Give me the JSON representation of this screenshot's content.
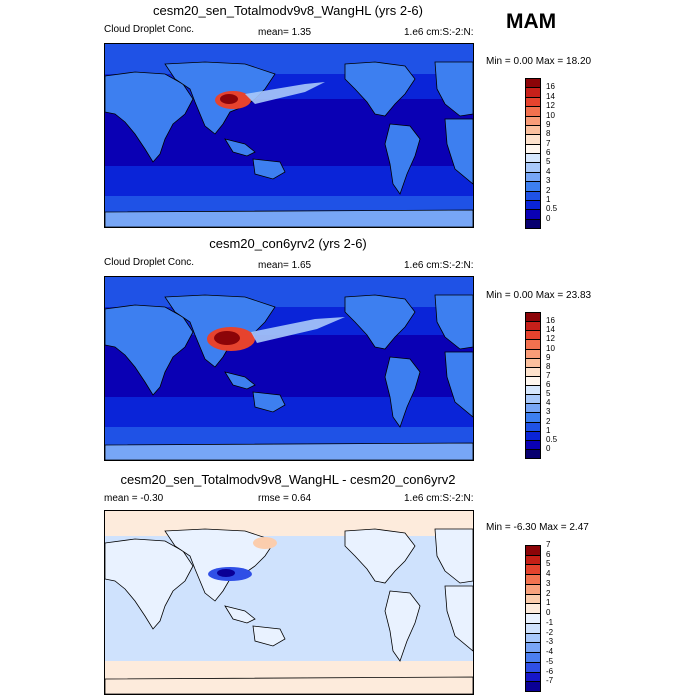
{
  "season": "MAM",
  "colors": {
    "seq": [
      "#08006f",
      "#0a00b4",
      "#0a24d8",
      "#1f52e6",
      "#3d7ff0",
      "#77a6f6",
      "#a9c9fa",
      "#d6e7fd",
      "#fff7ef",
      "#fee2cc",
      "#fbc09e",
      "#f89c78",
      "#f2714f",
      "#e6432e",
      "#c7201a",
      "#8c0408"
    ],
    "div": [
      "#0a0096",
      "#1616c9",
      "#2f4fe6",
      "#4c7ff0",
      "#79a5f6",
      "#a7c8fb",
      "#cfe2fd",
      "#e9f2ff",
      "#fdebdc",
      "#fbcdad",
      "#f8a27d",
      "#f27350",
      "#e4432d",
      "#c51f16",
      "#8c0408"
    ]
  },
  "panels": [
    {
      "title": "cesm20_sen_Totalmodv9v8_WangHL (yrs 2-6)",
      "left_label": "Cloud Droplet Conc.",
      "center_label": "mean=   1.35",
      "right_label": "1.e6 cm:S:-2:N:",
      "minmax": "Min =   0.00 Max =  18.20",
      "levels": [
        "0",
        "0.5",
        "1",
        "2",
        "3",
        "4",
        "5",
        "6",
        "7",
        "8",
        "9",
        "10",
        "12",
        "14",
        "16"
      ]
    },
    {
      "title": "cesm20_con6yrv2 (yrs 2-6)",
      "left_label": "Cloud Droplet Conc.",
      "center_label": "mean=   1.65",
      "right_label": "1.e6 cm:S:-2:N:",
      "minmax": "Min =   0.00 Max =  23.83",
      "levels": [
        "0",
        "0.5",
        "1",
        "2",
        "3",
        "4",
        "5",
        "6",
        "7",
        "8",
        "9",
        "10",
        "12",
        "14",
        "16"
      ]
    },
    {
      "title": "cesm20_sen_Totalmodv9v8_WangHL - cesm20_con6yrv2",
      "left_label": "mean =  -0.30",
      "center_label": "rmse =   0.64",
      "right_label": "1.e6 cm:S:-2:N:",
      "minmax": "Min =  -6.30 Max =   2.47",
      "levels": [
        "-7",
        "-6",
        "-5",
        "-4",
        "-3",
        "-2",
        "-1",
        "0",
        "1",
        "2",
        "3",
        "4",
        "5",
        "6",
        "7"
      ]
    }
  ],
  "chart_data": [
    {
      "type": "heatmap",
      "title": "cesm20_sen_Totalmodv9v8_WangHL (yrs 2-6)",
      "variable": "Cloud Droplet Conc.",
      "units": "1.e6 cm:S:-2:N:",
      "mean": 1.35,
      "min": 0.0,
      "max": 18.2,
      "contour_levels": [
        0,
        0.5,
        1,
        2,
        3,
        4,
        5,
        6,
        7,
        8,
        9,
        10,
        12,
        14,
        16
      ],
      "projection": "global map, centered on Pacific"
    },
    {
      "type": "heatmap",
      "title": "cesm20_con6yrv2 (yrs 2-6)",
      "variable": "Cloud Droplet Conc.",
      "units": "1.e6 cm:S:-2:N:",
      "mean": 1.65,
      "min": 0.0,
      "max": 23.83,
      "contour_levels": [
        0,
        0.5,
        1,
        2,
        3,
        4,
        5,
        6,
        7,
        8,
        9,
        10,
        12,
        14,
        16
      ],
      "projection": "global map, centered on Pacific"
    },
    {
      "type": "heatmap",
      "title": "cesm20_sen_Totalmodv9v8_WangHL - cesm20_con6yrv2",
      "units": "1.e6 cm:S:-2:N:",
      "mean": -0.3,
      "rmse": 0.64,
      "min": -6.3,
      "max": 2.47,
      "contour_levels": [
        -7,
        -6,
        -5,
        -4,
        -3,
        -2,
        -1,
        0,
        1,
        2,
        3,
        4,
        5,
        6,
        7
      ],
      "projection": "global map, centered on Pacific"
    }
  ]
}
